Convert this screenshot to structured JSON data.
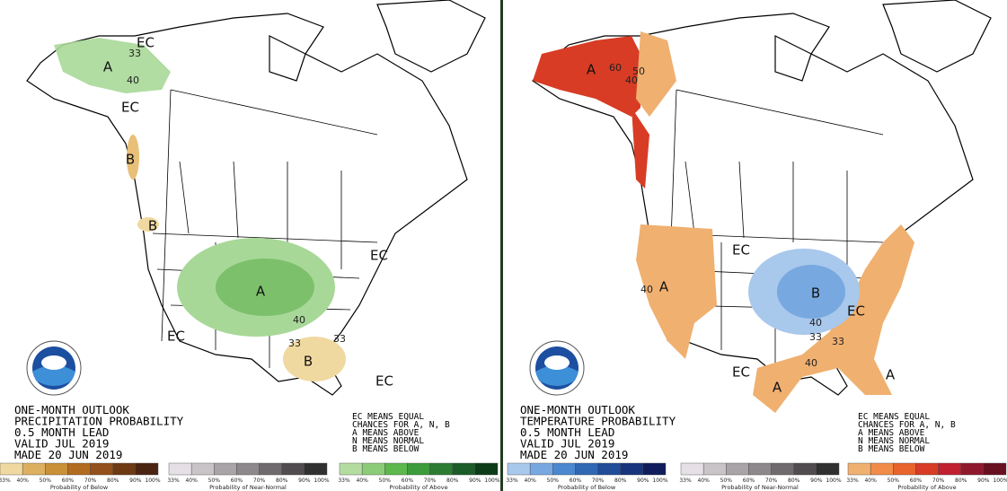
{
  "panels": [
    {
      "title_lines": [
        "ONE-MONTH OUTLOOK",
        "PRECIPITATION PROBABILITY",
        "0.5 MONTH LEAD",
        "VALID JUL 2019",
        "MADE 20 JUN 2019"
      ],
      "key_lines": [
        "EC MEANS EQUAL",
        "CHANCES FOR A, N, B",
        "A MEANS ABOVE",
        "N MEANS NORMAL",
        "B MEANS BELOW"
      ],
      "map_labels": [
        "EC",
        "A",
        "33",
        "40",
        "EC",
        "B",
        "B",
        "A",
        "40",
        "33",
        "EC",
        "EC",
        "B",
        "33",
        "EC"
      ],
      "legends": [
        {
          "caption": "Probability of Below",
          "colors": [
            "#f0d9a0",
            "#dcb060",
            "#c99038",
            "#b36b20",
            "#93501a",
            "#6e3a14",
            "#4a2410"
          ],
          "ticks": [
            "33%",
            "40%",
            "50%",
            "60%",
            "70%",
            "80%",
            "90%",
            "100%"
          ]
        },
        {
          "caption": "Probability of Near-Normal",
          "colors": [
            "#e6e0e6",
            "#c8c4c8",
            "#a8a4a8",
            "#8c888c",
            "#6e6a6e",
            "#504c50",
            "#303030"
          ],
          "ticks": [
            "33%",
            "40%",
            "50%",
            "60%",
            "70%",
            "80%",
            "90%",
            "100%"
          ]
        },
        {
          "caption": "Probability of Above",
          "colors": [
            "#b4dca0",
            "#8ccc78",
            "#5cb84c",
            "#3c9c3c",
            "#2c7c34",
            "#1c5c28",
            "#0c3c18"
          ],
          "ticks": [
            "33%",
            "40%",
            "50%",
            "60%",
            "70%",
            "80%",
            "90%",
            "100%"
          ]
        }
      ]
    },
    {
      "title_lines": [
        "ONE-MONTH OUTLOOK",
        "TEMPERATURE PROBABILITY",
        "0.5 MONTH LEAD",
        "VALID JUL 2019",
        "MADE 20 JUN 2019"
      ],
      "key_lines": [
        "EC MEANS EQUAL",
        "CHANCES FOR A, N, B",
        "A MEANS ABOVE",
        "N MEANS NORMAL",
        "B MEANS BELOW"
      ],
      "map_labels": [
        "A",
        "60",
        "50",
        "40",
        "EC",
        "A",
        "40",
        "B",
        "40",
        "33",
        "EC",
        "33",
        "40",
        "EC",
        "A",
        "A"
      ],
      "legends": [
        {
          "caption": "Probability of Below",
          "colors": [
            "#a8c8ec",
            "#78a8e0",
            "#4c88d0",
            "#3068b4",
            "#204c98",
            "#18347c",
            "#101c5c"
          ],
          "ticks": [
            "33%",
            "40%",
            "50%",
            "60%",
            "70%",
            "80%",
            "90%",
            "100%"
          ]
        },
        {
          "caption": "Probability of Near-Normal",
          "colors": [
            "#e6e0e6",
            "#c8c4c8",
            "#a8a4a8",
            "#8c888c",
            "#6e6a6e",
            "#504c50",
            "#303030"
          ],
          "ticks": [
            "33%",
            "40%",
            "50%",
            "60%",
            "70%",
            "80%",
            "90%",
            "100%"
          ]
        },
        {
          "caption": "Probability of Above",
          "colors": [
            "#f0b070",
            "#f08c48",
            "#e8642c",
            "#d83c24",
            "#c02030",
            "#90182c",
            "#681020"
          ],
          "ticks": [
            "33%",
            "40%",
            "50%",
            "60%",
            "70%",
            "80%",
            "90%",
            "100%"
          ]
        }
      ]
    }
  ]
}
